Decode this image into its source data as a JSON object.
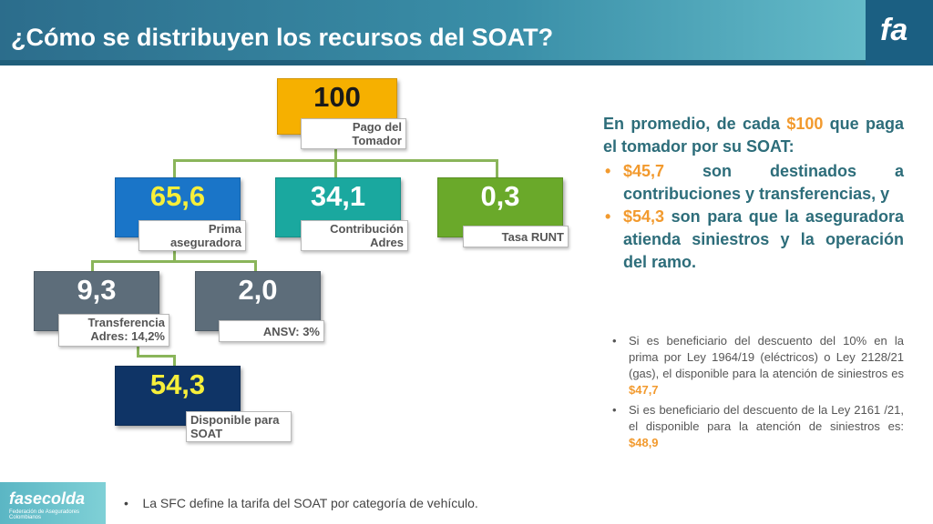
{
  "header": {
    "title": "¿Cómo se distribuyen los recursos del SOAT?",
    "logo": "fa"
  },
  "diagram": {
    "nodes": [
      {
        "id": "pago",
        "value": "100",
        "label": "Pago del Tomador",
        "color": "#f6b000",
        "text_color": "#1a1a1a"
      },
      {
        "id": "prima",
        "value": "65,6",
        "label": "Prima aseguradora",
        "color": "#1a75c8",
        "text_color": "#f7ef3a"
      },
      {
        "id": "contribucion",
        "value": "34,1",
        "label": "Contribución Adres",
        "color": "#1aa89f",
        "text_color": "#ffffff"
      },
      {
        "id": "runt",
        "value": "0,3",
        "label": "Tasa RUNT",
        "color": "#6aa92a",
        "text_color": "#ffffff"
      },
      {
        "id": "transferencia",
        "value": "9,3",
        "label": "Transferencia Adres: 14,2%",
        "color": "#5d6d7a",
        "text_color": "#ffffff"
      },
      {
        "id": "ansv",
        "value": "2,0",
        "label": "ANSV: 3%",
        "color": "#5d6d7a",
        "text_color": "#ffffff"
      },
      {
        "id": "disponible",
        "value": "54,3",
        "label": "Disponible para SOAT",
        "color": "#0f3466",
        "text_color": "#f7ef3a"
      }
    ]
  },
  "summary": {
    "intro_pre": "En promedio, de cada ",
    "intro_hl": "$100",
    "intro_post": " que paga el tomador por su SOAT:",
    "items": [
      {
        "hl": "$45,7",
        "text": " son destinados a contribuciones y transferencias, y"
      },
      {
        "hl": "$54,3",
        "text": " son para que la aseguradora atienda siniestros y la operación del ramo."
      }
    ]
  },
  "notes": [
    {
      "text": "Si es beneficiario del descuento del 10% en la prima por Ley 1964/19 (eléctricos) o Ley 2128/21 (gas), el disponible para la atención de siniestros es ",
      "hl": "$47,7"
    },
    {
      "text": "Si es beneficiario del descuento de la Ley 2161 /21, el disponible para la atención de siniestros es: ",
      "hl": "$48,9"
    }
  ],
  "footer": {
    "logo": "fasecolda",
    "logo_sub": "Federación de Aseguradores Colombianos",
    "note": "La SFC define la tarifa del SOAT por categoría de vehículo."
  }
}
